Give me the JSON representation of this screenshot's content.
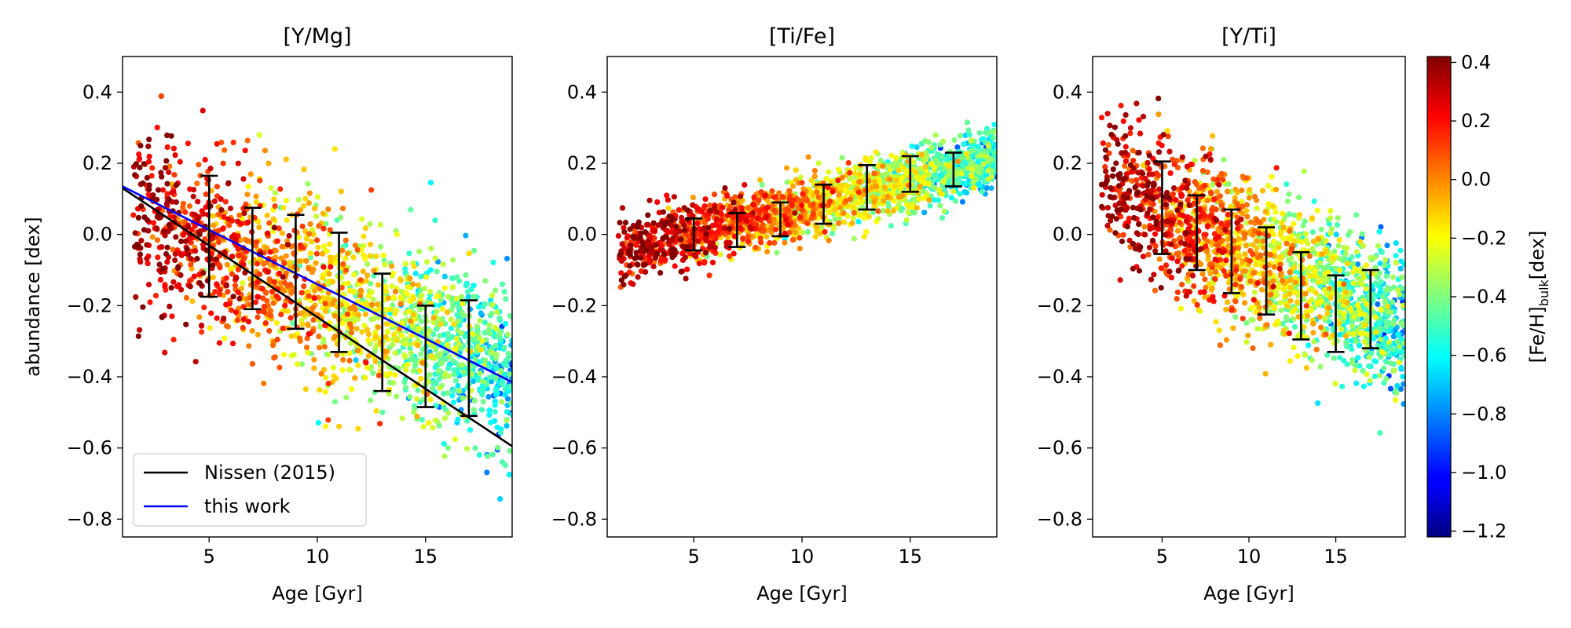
{
  "figure": {
    "ylabel": "abundance [dex]",
    "colorbar": {
      "label_main": "[Fe/H]",
      "label_sub": "bulk",
      "label_tail": "[dex]",
      "range": [
        -1.22,
        0.42
      ],
      "ticks": [
        0.4,
        0.2,
        0.0,
        -0.2,
        -0.4,
        -0.6,
        -0.8,
        -1.0,
        -1.2
      ],
      "tick_labels": [
        "0.4",
        "0.2",
        "0.0",
        "−0.2",
        "−0.4",
        "−0.6",
        "−0.8",
        "−1.0",
        "−1.2"
      ],
      "colormap": "jet"
    }
  },
  "chart_data": [
    {
      "type": "scatter",
      "title": "[Y/Mg]",
      "xlabel": "Age [Gyr]",
      "ylabel": "abundance [dex]",
      "xlim": [
        1,
        19
      ],
      "ylim": [
        -0.85,
        0.5
      ],
      "xticks": [
        5,
        10,
        15
      ],
      "xtick_labels": [
        "5",
        "10",
        "15"
      ],
      "yticks": [
        0.4,
        0.2,
        0.0,
        -0.2,
        -0.4,
        -0.6,
        -0.8
      ],
      "ytick_labels": [
        "0.4",
        "0.2",
        "0.0",
        "−0.2",
        "−0.4",
        "−0.6",
        "−0.8"
      ],
      "scatter_model": {
        "n": 1900,
        "y_at_age_5": -0.02,
        "slope": -0.026,
        "spread": 0.12,
        "age_range": [
          1.5,
          19
        ],
        "feh_at_age_1": 0.38,
        "feh_slope": -0.055
      },
      "errorbars": [
        {
          "x": 5,
          "center": -0.005,
          "low": -0.175,
          "high": 0.165
        },
        {
          "x": 7,
          "center": -0.065,
          "low": -0.21,
          "high": 0.075
        },
        {
          "x": 9,
          "center": -0.105,
          "low": -0.265,
          "high": 0.055
        },
        {
          "x": 11,
          "center": -0.165,
          "low": -0.33,
          "high": 0.005
        },
        {
          "x": 13,
          "center": -0.275,
          "low": -0.44,
          "high": -0.11
        },
        {
          "x": 15,
          "center": -0.34,
          "low": -0.485,
          "high": -0.2
        },
        {
          "x": 17,
          "center": -0.35,
          "low": -0.51,
          "high": -0.185
        }
      ],
      "lines": [
        {
          "name": "Nissen (2015)",
          "color": "#000000",
          "x": [
            1,
            19
          ],
          "y": [
            0.13,
            -0.595
          ]
        },
        {
          "name": "this work",
          "color": "#0000ff",
          "x": [
            1,
            19
          ],
          "y": [
            0.135,
            -0.415
          ]
        }
      ],
      "legend": {
        "position": "lower-left",
        "entries": [
          "Nissen (2015)",
          "this work"
        ]
      }
    },
    {
      "type": "scatter",
      "title": "[Ti/Fe]",
      "xlabel": "Age [Gyr]",
      "ylabel": "",
      "xlim": [
        1,
        19
      ],
      "ylim": [
        -0.85,
        0.5
      ],
      "xticks": [
        5,
        10,
        15
      ],
      "xtick_labels": [
        "5",
        "10",
        "15"
      ],
      "yticks": [
        0.4,
        0.2,
        0.0,
        -0.2,
        -0.4,
        -0.6,
        -0.8
      ],
      "ytick_labels": [
        "0.4",
        "0.2",
        "0.0",
        "−0.2",
        "−0.4",
        "−0.6",
        "−0.8"
      ],
      "scatter_model": {
        "n": 1900,
        "y_at_age_5": 0.0,
        "slope": 0.0155,
        "spread": 0.045,
        "age_range": [
          1.5,
          19
        ],
        "feh_at_age_1": 0.38,
        "feh_slope": -0.055
      },
      "errorbars": [
        {
          "x": 5,
          "center": 0.0,
          "low": -0.045,
          "high": 0.045
        },
        {
          "x": 7,
          "center": 0.01,
          "low": -0.035,
          "high": 0.06
        },
        {
          "x": 9,
          "center": 0.04,
          "low": -0.005,
          "high": 0.09
        },
        {
          "x": 11,
          "center": 0.085,
          "low": 0.03,
          "high": 0.14
        },
        {
          "x": 13,
          "center": 0.13,
          "low": 0.07,
          "high": 0.195
        },
        {
          "x": 15,
          "center": 0.17,
          "low": 0.12,
          "high": 0.22
        },
        {
          "x": 17,
          "center": 0.18,
          "low": 0.135,
          "high": 0.23
        }
      ],
      "lines": [],
      "legend": null
    },
    {
      "type": "scatter",
      "title": "[Y/Ti]",
      "xlabel": "Age [Gyr]",
      "ylabel": "",
      "xlim": [
        1,
        19
      ],
      "ylim": [
        -0.85,
        0.5
      ],
      "xticks": [
        5,
        10,
        15
      ],
      "xtick_labels": [
        "5",
        "10",
        "15"
      ],
      "yticks": [
        0.4,
        0.2,
        0.0,
        -0.2,
        -0.4,
        -0.6,
        -0.8
      ],
      "ytick_labels": [
        "0.4",
        "0.2",
        "0.0",
        "−0.2",
        "−0.4",
        "−0.6",
        "−0.8"
      ],
      "scatter_model": {
        "n": 1900,
        "y_at_age_5": 0.07,
        "slope": -0.025,
        "spread": 0.1,
        "age_range": [
          1.5,
          19
        ],
        "feh_at_age_1": 0.38,
        "feh_slope": -0.055
      },
      "errorbars": [
        {
          "x": 5,
          "center": 0.075,
          "low": -0.055,
          "high": 0.205
        },
        {
          "x": 7,
          "center": 0.005,
          "low": -0.1,
          "high": 0.11
        },
        {
          "x": 9,
          "center": -0.05,
          "low": -0.165,
          "high": 0.07
        },
        {
          "x": 11,
          "center": -0.1,
          "low": -0.225,
          "high": 0.02
        },
        {
          "x": 13,
          "center": -0.175,
          "low": -0.295,
          "high": -0.05
        },
        {
          "x": 15,
          "center": -0.225,
          "low": -0.33,
          "high": -0.115
        },
        {
          "x": 17,
          "center": -0.21,
          "low": -0.32,
          "high": -0.1
        }
      ],
      "lines": [],
      "legend": null
    }
  ]
}
